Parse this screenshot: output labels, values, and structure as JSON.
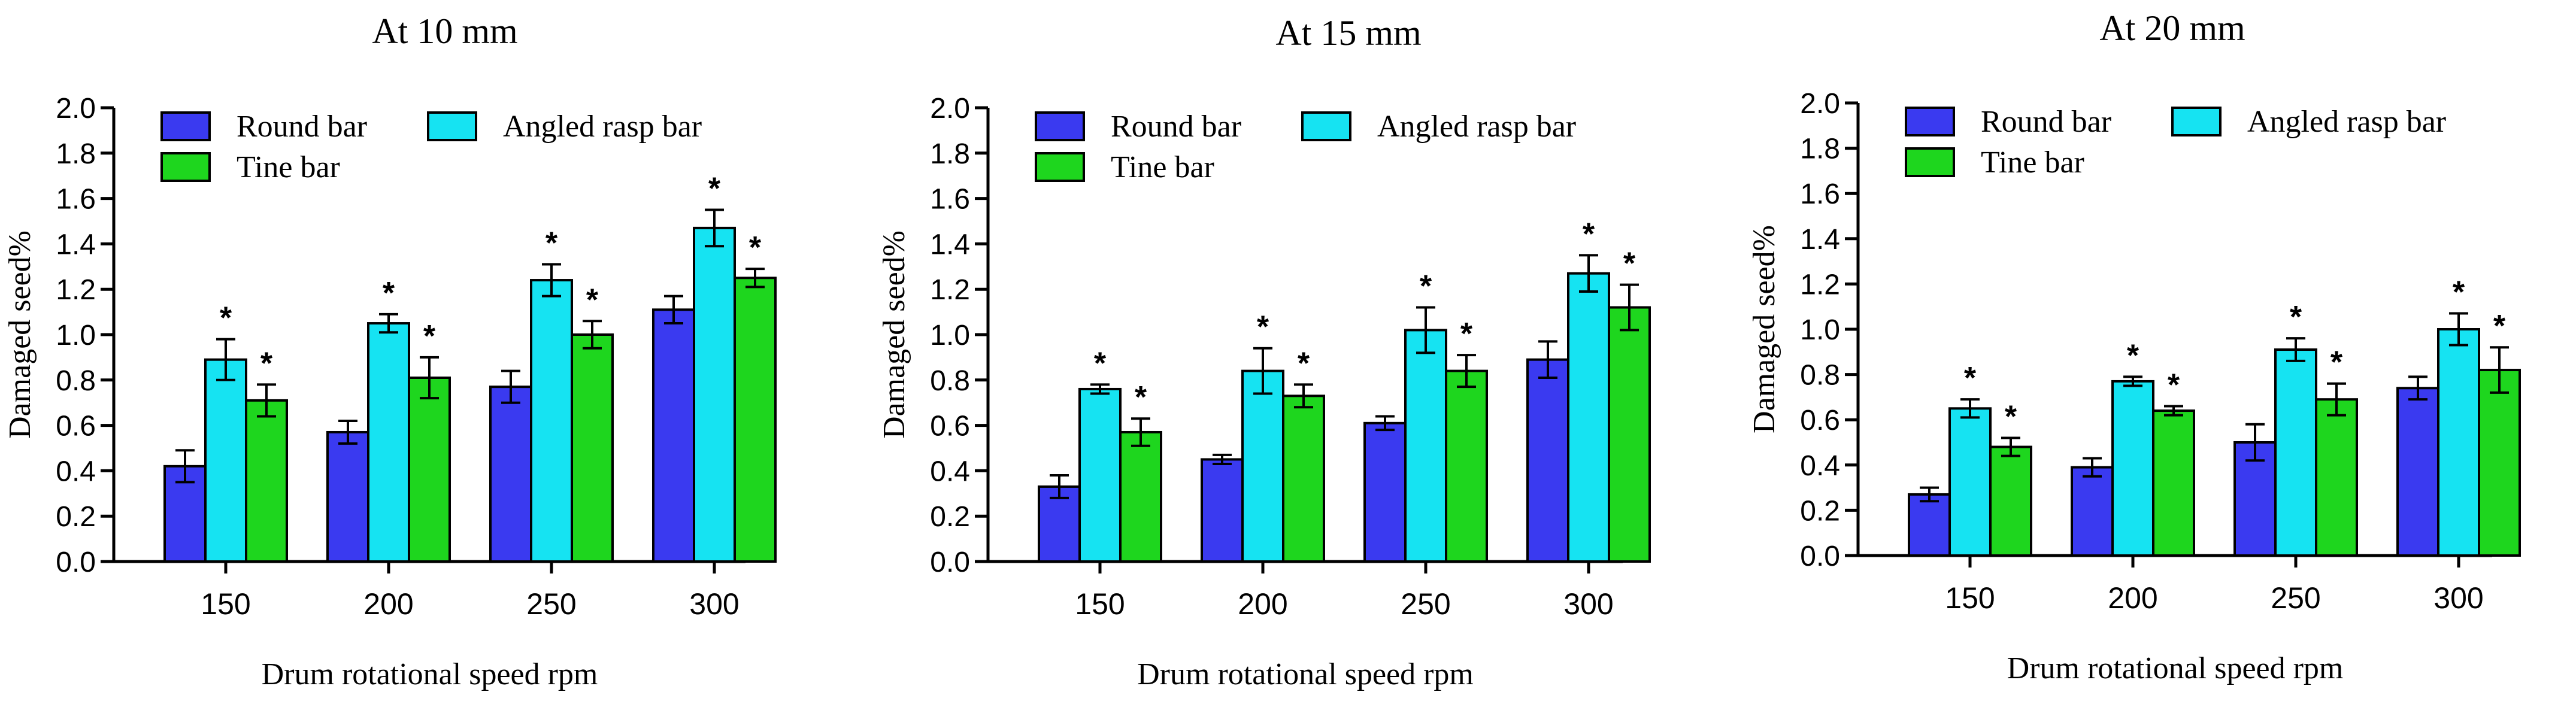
{
  "chart_data": [
    {
      "type": "bar",
      "title": "At 10 mm",
      "xlabel": "Drum rotational speed rpm",
      "ylabel": "Damaged seed%",
      "ylim": [
        0,
        2.0
      ],
      "yticks": [
        "0.0",
        "0.2",
        "0.4",
        "0.6",
        "0.8",
        "1.0",
        "1.2",
        "1.4",
        "1.6",
        "1.8",
        "2.0"
      ],
      "categories": [
        "150",
        "200",
        "250",
        "300"
      ],
      "legend_position": "top-left",
      "series": [
        {
          "name": "Round bar",
          "color": "#3a3af0",
          "values": [
            0.42,
            0.57,
            0.77,
            1.11
          ],
          "errors": [
            0.07,
            0.05,
            0.07,
            0.06
          ],
          "stars": [
            "",
            "",
            "",
            ""
          ]
        },
        {
          "name": "Angled rasp bar",
          "color": "#16e3f2",
          "values": [
            0.89,
            1.05,
            1.24,
            1.47
          ],
          "errors": [
            0.09,
            0.04,
            0.07,
            0.08
          ],
          "stars": [
            "*",
            "*",
            "*",
            "*"
          ]
        },
        {
          "name": "Tine bar",
          "color": "#1ed61e",
          "values": [
            0.71,
            0.81,
            1.0,
            1.25
          ],
          "errors": [
            0.07,
            0.09,
            0.06,
            0.04
          ],
          "stars": [
            "*",
            "*",
            "*",
            "*"
          ]
        }
      ]
    },
    {
      "type": "bar",
      "title": "At 15 mm",
      "xlabel": "Drum rotational speed rpm",
      "ylabel": "Damaged seed%",
      "ylim": [
        0,
        2.0
      ],
      "yticks": [
        "0.0",
        "0.2",
        "0.4",
        "0.6",
        "0.8",
        "1.0",
        "1.2",
        "1.4",
        "1.6",
        "1.8",
        "2.0"
      ],
      "categories": [
        "150",
        "200",
        "250",
        "300"
      ],
      "legend_position": "top-left",
      "series": [
        {
          "name": "Round bar",
          "color": "#3a3af0",
          "values": [
            0.33,
            0.45,
            0.61,
            0.89
          ],
          "errors": [
            0.05,
            0.02,
            0.03,
            0.08
          ],
          "stars": [
            "",
            "",
            "",
            ""
          ]
        },
        {
          "name": "Angled rasp bar",
          "color": "#16e3f2",
          "values": [
            0.76,
            0.84,
            1.02,
            1.27
          ],
          "errors": [
            0.02,
            0.1,
            0.1,
            0.08
          ],
          "stars": [
            "*",
            "*",
            "*",
            "*"
          ]
        },
        {
          "name": "Tine bar",
          "color": "#1ed61e",
          "values": [
            0.57,
            0.73,
            0.84,
            1.12
          ],
          "errors": [
            0.06,
            0.05,
            0.07,
            0.1
          ],
          "stars": [
            "*",
            "*",
            "*",
            "*"
          ]
        }
      ]
    },
    {
      "type": "bar",
      "title": "At 20 mm",
      "xlabel": "Drum rotational speed rpm",
      "ylabel": "Damaged seed%",
      "ylim": [
        0,
        2.0
      ],
      "yticks": [
        "0.0",
        "0.2",
        "0.4",
        "0.6",
        "0.8",
        "1.0",
        "1.2",
        "1.4",
        "1.6",
        "1.8",
        "2.0"
      ],
      "categories": [
        "150",
        "200",
        "250",
        "300"
      ],
      "legend_position": "top-left",
      "series": [
        {
          "name": "Round bar",
          "color": "#3a3af0",
          "values": [
            0.27,
            0.39,
            0.5,
            0.74
          ],
          "errors": [
            0.03,
            0.04,
            0.08,
            0.05
          ],
          "stars": [
            "",
            "",
            "",
            ""
          ]
        },
        {
          "name": "Angled rasp bar",
          "color": "#16e3f2",
          "values": [
            0.65,
            0.77,
            0.91,
            1.0
          ],
          "errors": [
            0.04,
            0.02,
            0.05,
            0.07
          ],
          "stars": [
            "*",
            "*",
            "*",
            "*"
          ]
        },
        {
          "name": "Tine bar",
          "color": "#1ed61e",
          "values": [
            0.48,
            0.64,
            0.69,
            0.82
          ],
          "errors": [
            0.04,
            0.02,
            0.07,
            0.1
          ],
          "stars": [
            "*",
            "*",
            "*",
            "*"
          ]
        }
      ]
    }
  ]
}
